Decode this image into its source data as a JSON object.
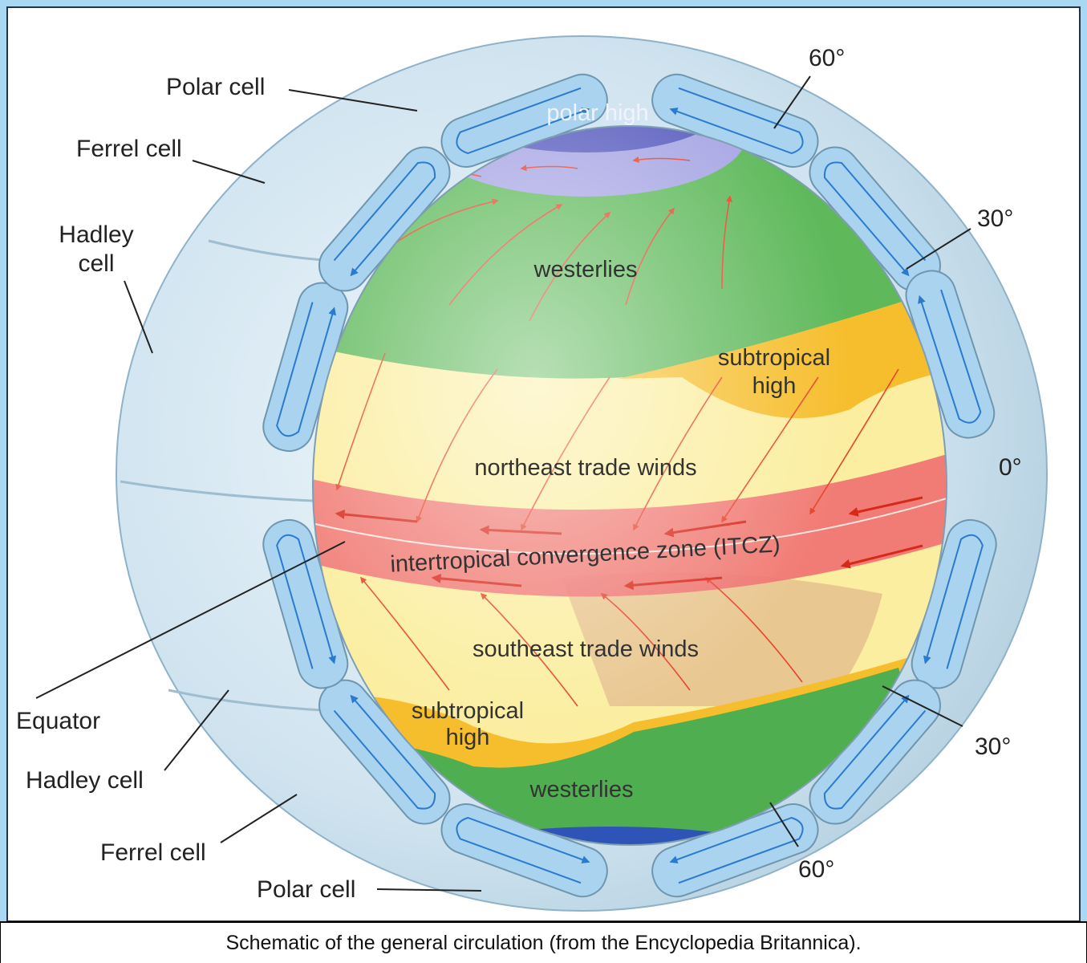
{
  "diagram": {
    "outer_labels": [
      {
        "lines": [
          "Polar cell"
        ]
      },
      {
        "lines": [
          "Ferrel cell"
        ]
      },
      {
        "lines": [
          "Hadley",
          "cell"
        ]
      },
      {
        "lines": [
          "Equator"
        ]
      },
      {
        "lines": [
          "Hadley cell"
        ]
      },
      {
        "lines": [
          "Ferrel cell"
        ]
      },
      {
        "lines": [
          "Polar cell"
        ]
      },
      {
        "lines": [
          "60°"
        ]
      },
      {
        "lines": [
          "30°"
        ]
      },
      {
        "lines": [
          "0°"
        ]
      },
      {
        "lines": [
          "30°"
        ]
      },
      {
        "lines": [
          "60°"
        ]
      }
    ],
    "globe_labels": [
      {
        "lines": [
          "polar high"
        ]
      },
      {
        "lines": [
          "westerlies"
        ]
      },
      {
        "lines": [
          "subtropical",
          "high"
        ]
      },
      {
        "lines": [
          "northeast trade winds"
        ]
      },
      {
        "lines": [
          "intertropical convergence zone (ITCZ)"
        ]
      },
      {
        "lines": [
          "southeast trade winds"
        ]
      },
      {
        "lines": [
          "subtropical",
          "high"
        ]
      },
      {
        "lines": [
          "westerlies"
        ]
      }
    ]
  },
  "caption": "Schematic of the general circulation (from the Encyclopedia Britannica)."
}
